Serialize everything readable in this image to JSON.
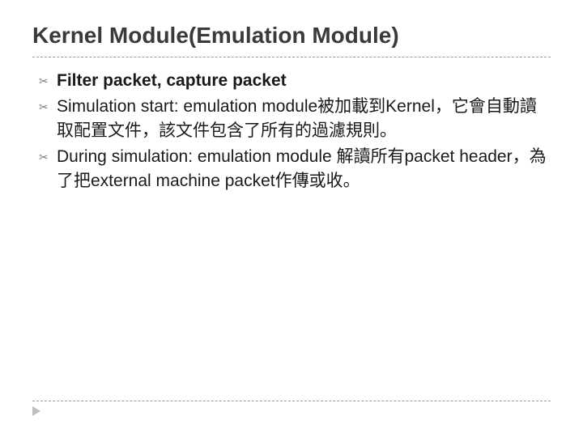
{
  "slide": {
    "title": "Kernel Module(Emulation Module)",
    "title_color": "#3a3a3a",
    "title_fontsize": 28,
    "divider_color": "#999999",
    "bullet_marker": "✂",
    "bullet_marker_color": "#7a7a7a",
    "body_fontsize": 21,
    "body_color": "#1a1a1a",
    "bullets": [
      {
        "text": "Filter packet, capture packet",
        "bold": true
      },
      {
        "text": "Simulation start: emulation module被加載到Kernel，它會自動讀取配置文件，該文件包含了所有的過濾規則。",
        "bold": false
      },
      {
        "text": "During simulation: emulation module 解讀所有packet header，為了把external machine packet作傳或收。",
        "bold": false
      }
    ],
    "footer_arrow_color": "#bfbfbf",
    "background_color": "#ffffff"
  }
}
